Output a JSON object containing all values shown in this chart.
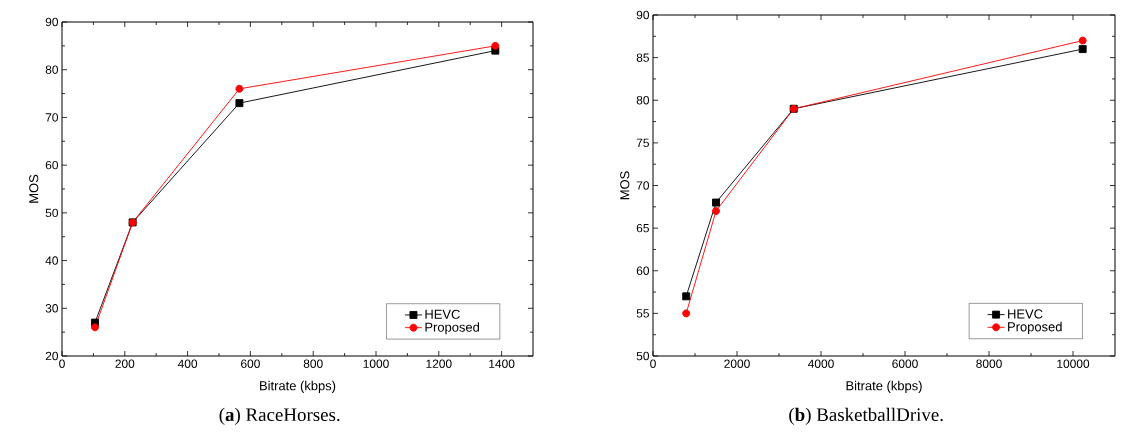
{
  "chart_data": [
    {
      "type": "line",
      "title": "(**a**) RaceHorses.",
      "xlabel": "Bitrate (kbps)",
      "ylabel": "MOS",
      "x": [
        105,
        225,
        565,
        1380
      ],
      "series": [
        {
          "name": "HEVC",
          "color": "#000000",
          "marker": "square",
          "values": [
            27,
            48,
            73,
            84
          ]
        },
        {
          "name": "Proposed",
          "color": "#ff0000",
          "marker": "circle",
          "values": [
            26,
            48,
            76,
            85
          ]
        }
      ],
      "xlim": [
        0,
        1500
      ],
      "xticks": [
        0,
        200,
        400,
        600,
        800,
        1000,
        1200,
        1400
      ],
      "ylim": [
        20,
        90
      ],
      "yticks": [
        20,
        30,
        40,
        50,
        60,
        70,
        80,
        90
      ],
      "legend": "bottom right",
      "grid": false
    },
    {
      "type": "line",
      "title": "(**b**) BasketballDrive.",
      "xlabel": "Bitrate (kbps)",
      "ylabel": "MOS",
      "x": [
        790,
        1500,
        3350,
        10230
      ],
      "series": [
        {
          "name": "HEVC",
          "color": "#000000",
          "marker": "square",
          "values": [
            57,
            68,
            79,
            86
          ]
        },
        {
          "name": "Proposed",
          "color": "#ff0000",
          "marker": "circle",
          "values": [
            55,
            67,
            79,
            87
          ]
        }
      ],
      "xlim": [
        0,
        11000
      ],
      "xticks": [
        0,
        2000,
        4000,
        6000,
        8000,
        10000
      ],
      "ylim": [
        50,
        90
      ],
      "yticks": [
        50,
        55,
        60,
        65,
        70,
        75,
        80,
        85,
        90
      ],
      "legend": "bottom right",
      "grid": false
    }
  ]
}
